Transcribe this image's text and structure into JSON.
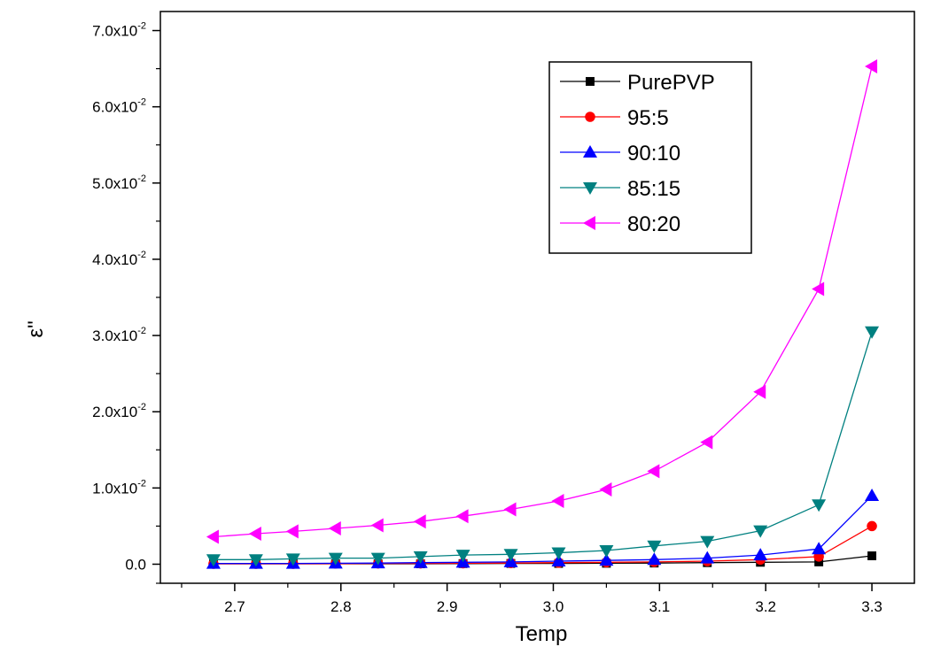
{
  "chart_data": {
    "type": "line",
    "title": "",
    "xlabel": "Temp",
    "ylabel": "ε\"",
    "xlim": [
      2.63,
      3.34
    ],
    "ylim": [
      -0.0025,
      0.0725
    ],
    "x_ticks": [
      2.7,
      2.8,
      2.9,
      3.0,
      3.1,
      3.2,
      3.3
    ],
    "x_tick_labels": [
      "2.7",
      "2.8",
      "2.9",
      "3.0",
      "3.1",
      "3.2",
      "3.3"
    ],
    "y_ticks": [
      0,
      0.01,
      0.02,
      0.03,
      0.04,
      0.05,
      0.06,
      0.07
    ],
    "y_tick_labels": [
      {
        "mantissa": "0.0",
        "exponent": ""
      },
      {
        "mantissa": "1.0x10",
        "exponent": "-2"
      },
      {
        "mantissa": "2.0x10",
        "exponent": "-2"
      },
      {
        "mantissa": "3.0x10",
        "exponent": "-2"
      },
      {
        "mantissa": "4.0x10",
        "exponent": "-2"
      },
      {
        "mantissa": "5.0x10",
        "exponent": "-2"
      },
      {
        "mantissa": "6.0x10",
        "exponent": "-2"
      },
      {
        "mantissa": "7.0x10",
        "exponent": "-2"
      }
    ],
    "grid": false,
    "legend_position": "top-right",
    "x": [
      2.68,
      2.72,
      2.755,
      2.795,
      2.835,
      2.875,
      2.915,
      2.96,
      3.005,
      3.05,
      3.095,
      3.145,
      3.195,
      3.25,
      3.3
    ],
    "series": [
      {
        "name": "PurePVP",
        "color": "#000000",
        "marker": "square",
        "values": [
          5e-05,
          5e-05,
          5e-05,
          5e-05,
          5e-05,
          5e-05,
          8e-05,
          0.0001,
          0.0001,
          0.00012,
          0.00015,
          0.0002,
          0.00025,
          0.0003,
          0.0011
        ]
      },
      {
        "name": "95:5",
        "color": "#ff0000",
        "marker": "circle",
        "values": [
          5e-05,
          5e-05,
          5e-05,
          8e-05,
          0.0001,
          0.0001,
          0.00012,
          0.00015,
          0.0002,
          0.00025,
          0.0003,
          0.0004,
          0.0006,
          0.001,
          0.005
        ]
      },
      {
        "name": "90:10",
        "color": "#0000ff",
        "marker": "triangle-up",
        "values": [
          0.0001,
          0.0001,
          0.0001,
          0.00012,
          0.00015,
          0.0002,
          0.00025,
          0.0003,
          0.0004,
          0.0005,
          0.0006,
          0.0008,
          0.0012,
          0.002,
          0.009
        ]
      },
      {
        "name": "85:15",
        "color": "#008080",
        "marker": "triangle-down",
        "values": [
          0.0006,
          0.0006,
          0.0007,
          0.0008,
          0.0008,
          0.001,
          0.0012,
          0.0013,
          0.0015,
          0.0018,
          0.0024,
          0.003,
          0.0044,
          0.0078,
          0.0305
        ]
      },
      {
        "name": "80:20",
        "color": "#ff00ff",
        "marker": "triangle-left",
        "values": [
          0.0036,
          0.004,
          0.0043,
          0.0047,
          0.0051,
          0.0056,
          0.0063,
          0.0072,
          0.0083,
          0.0098,
          0.0122,
          0.016,
          0.0226,
          0.0361,
          0.0653
        ]
      }
    ]
  }
}
